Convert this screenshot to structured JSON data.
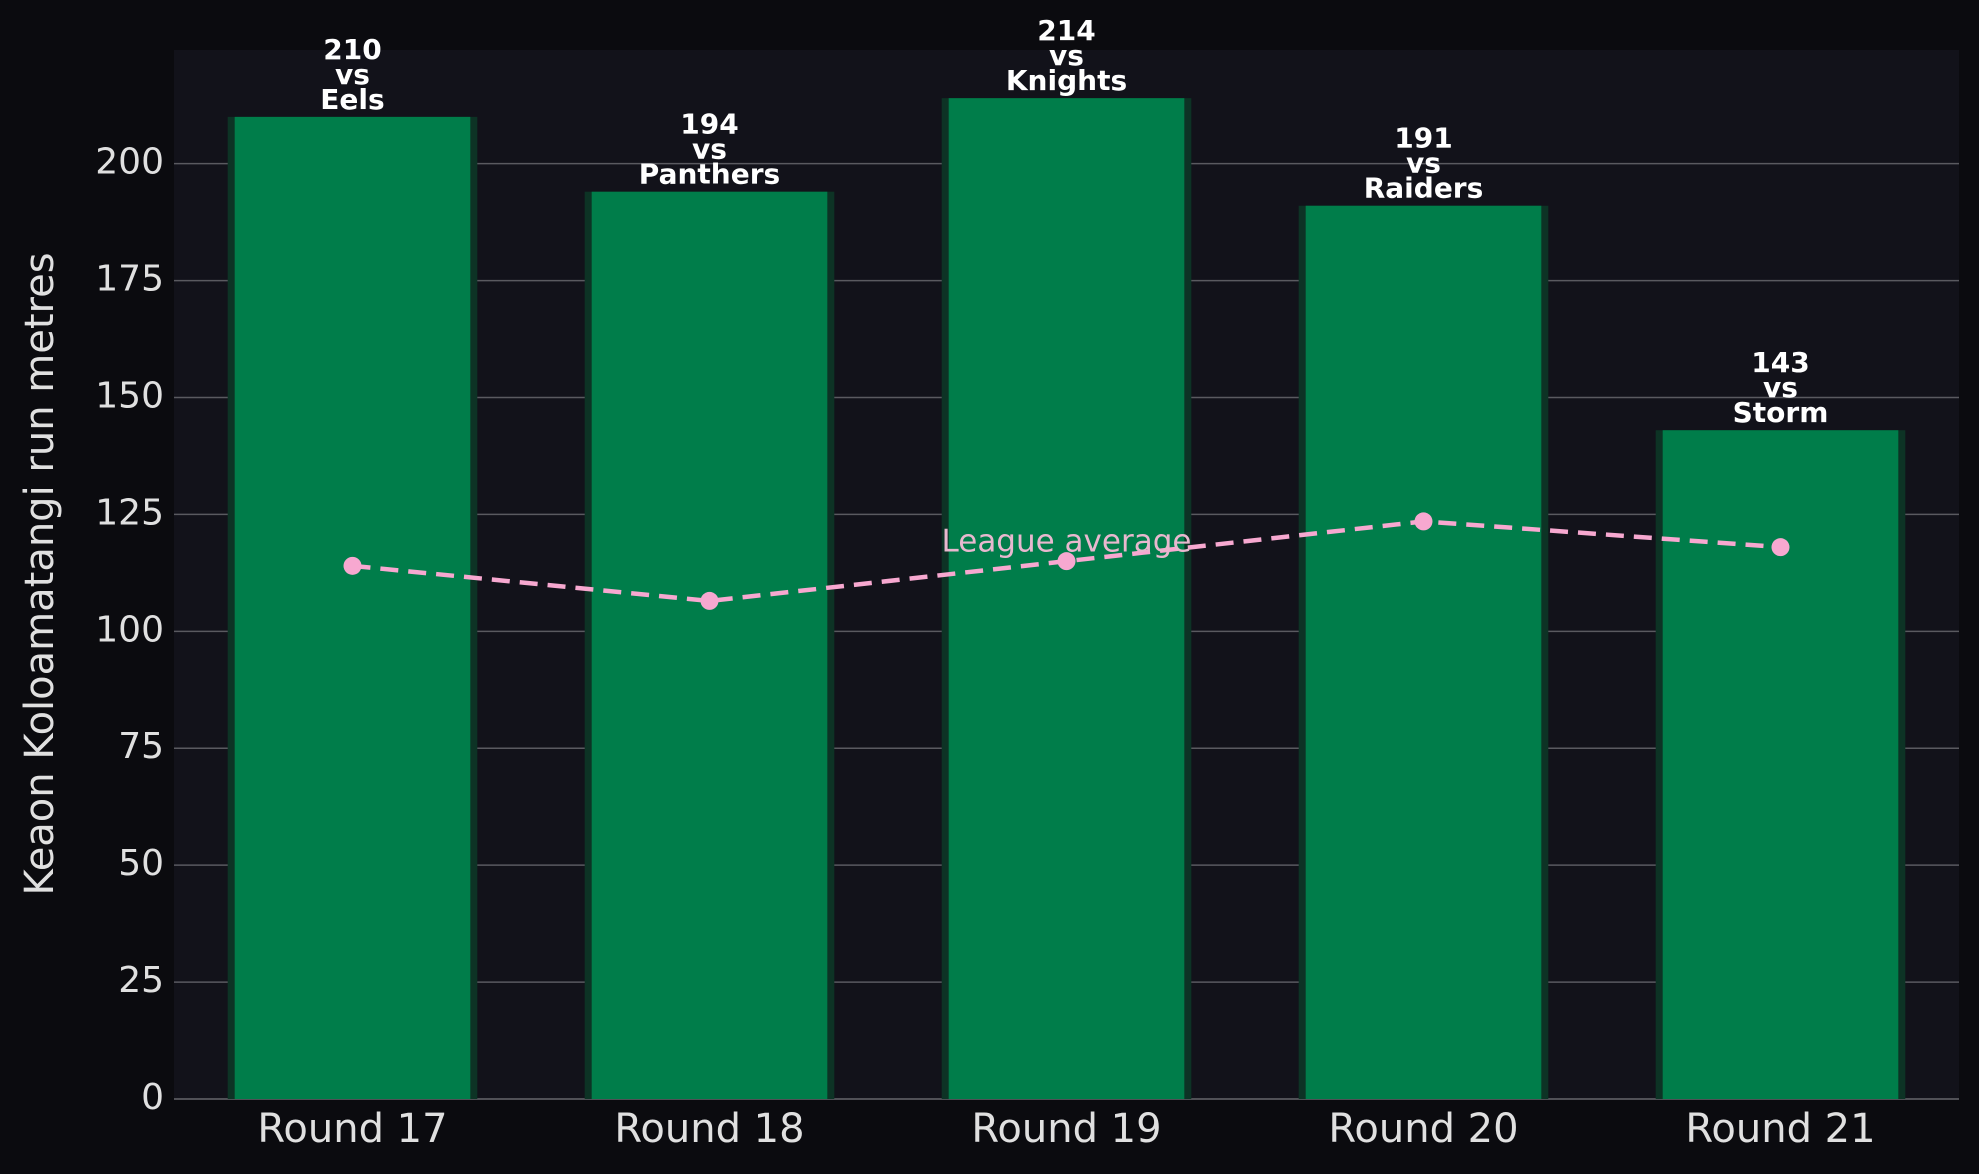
{
  "chart_data": {
    "type": "bar",
    "ylabel": "Keaon Koloamatangi run metres",
    "categories": [
      "Round 17",
      "Round 18",
      "Round 19",
      "Round 20",
      "Round 21"
    ],
    "series": [
      {
        "name": "Keaon Koloamatangi run metres",
        "type": "bar",
        "color": "#007d4a",
        "values": [
          210,
          194,
          214,
          191,
          143
        ],
        "value_labels": [
          "210\nvs\nEels",
          "194\nvs\nPanthers",
          "214\nvs\nKnights",
          "191\nvs\nRaiders",
          "143\nvs\nStorm"
        ]
      },
      {
        "name": "League average",
        "type": "line",
        "color": "#f7a8d0",
        "values": [
          114,
          106.5,
          115,
          123.5,
          118
        ]
      }
    ],
    "ylim": [
      0,
      224.3
    ],
    "yticks": [
      0,
      25,
      50,
      75,
      100,
      125,
      150,
      175,
      200
    ],
    "grid": true
  }
}
